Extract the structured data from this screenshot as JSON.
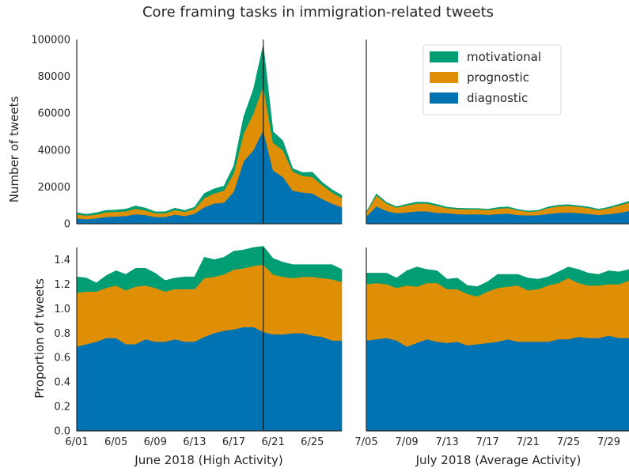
{
  "chart_data": {
    "type": "area",
    "stacked": true,
    "title": "Core framing tasks in immigration-related tweets",
    "colors": {
      "diagnostic": "#0173b2",
      "prognostic": "#de8f05",
      "motivational": "#029e73"
    },
    "legend": {
      "placement": "top-right",
      "entries": [
        "motivational",
        "prognostic",
        "diagnostic"
      ]
    },
    "panels": {
      "june_top": {
        "xlabel": "",
        "ylabel": "Number of tweets",
        "ylim": [
          0,
          100000
        ],
        "yticks": [
          "0",
          "20000",
          "40000",
          "60000",
          "80000",
          "100000"
        ],
        "x": [
          "6/01",
          "6/02",
          "6/03",
          "6/04",
          "6/05",
          "6/06",
          "6/07",
          "6/08",
          "6/09",
          "6/10",
          "6/11",
          "6/12",
          "6/13",
          "6/14",
          "6/15",
          "6/16",
          "6/17",
          "6/18",
          "6/19",
          "6/20",
          "6/21",
          "6/22",
          "6/23",
          "6/24",
          "6/25",
          "6/26",
          "6/27",
          "6/28"
        ],
        "vline": "6/20",
        "series": [
          {
            "name": "diagnostic",
            "values": [
              3000,
              2500,
              3000,
              3800,
              4000,
              4300,
              5200,
              4800,
              3700,
              3700,
              5000,
              4200,
              5500,
              9000,
              11000,
              11500,
              17500,
              34000,
              40000,
              51000,
              29000,
              25500,
              18000,
              17000,
              16500,
              13500,
              11000,
              9000
            ]
          },
          {
            "name": "prognostic",
            "values": [
              2000,
              2000,
              2000,
              2500,
              2500,
              2500,
              3000,
              2500,
              2000,
              2000,
              2500,
              2300,
              2500,
              5000,
              5500,
              6500,
              10000,
              15000,
              20000,
              24000,
              15000,
              14500,
              10500,
              9000,
              9000,
              7500,
              6000,
              5000
            ]
          },
          {
            "name": "motivational",
            "values": [
              1000,
              700,
              1000,
              1000,
              1000,
              1200,
              1500,
              1200,
              800,
              800,
              1000,
              800,
              1000,
              2500,
              2500,
              2500,
              4000,
              9000,
              13000,
              22000,
              6000,
              5000,
              1500,
              1800,
              2500,
              1500,
              1500,
              1500
            ]
          }
        ]
      },
      "july_top": {
        "xlabel": "",
        "ylabel": "",
        "ylim": [
          0,
          100000
        ],
        "x": [
          "7/05",
          "7/06",
          "7/07",
          "7/08",
          "7/09",
          "7/10",
          "7/11",
          "7/12",
          "7/13",
          "7/14",
          "7/15",
          "7/16",
          "7/17",
          "7/18",
          "7/19",
          "7/20",
          "7/21",
          "7/22",
          "7/23",
          "7/24",
          "7/25",
          "7/26",
          "7/27",
          "7/28",
          "7/29",
          "7/30",
          "7/31"
        ],
        "series": [
          {
            "name": "diagnostic",
            "values": [
              4000,
              9500,
              7000,
              5800,
              6200,
              6800,
              6800,
              6000,
              5800,
              5300,
              5100,
              5200,
              4900,
              5300,
              5600,
              4800,
              4600,
              4700,
              5400,
              6000,
              6200,
              5800,
              5400,
              4800,
              5300,
              5900,
              7000
            ]
          },
          {
            "name": "prognostic",
            "values": [
              2000,
              6000,
              4000,
              3000,
              3800,
              4200,
              4200,
              3800,
              2700,
              2700,
              2700,
              2700,
              2600,
              2900,
              3000,
              2600,
              1900,
              2200,
              3200,
              3500,
              3600,
              3500,
              3200,
              2700,
              3200,
              4100,
              4500
            ]
          },
          {
            "name": "motivational",
            "values": [
              300,
              700,
              600,
              500,
              600,
              800,
              700,
              700,
              500,
              500,
              500,
              400,
              400,
              600,
              600,
              400,
              400,
              400,
              500,
              600,
              600,
              500,
              500,
              400,
              500,
              600,
              700
            ]
          }
        ]
      },
      "june_bottom": {
        "xlabel": "June 2018 (High Activity)",
        "ylabel": "Proportion of tweets",
        "ylim": [
          0,
          1.5
        ],
        "yticks": [
          "0.0",
          "0.2",
          "0.4",
          "0.6",
          "0.8",
          "1.0",
          "1.2",
          "1.4"
        ],
        "xticks": [
          "6/01",
          "6/05",
          "6/09",
          "6/13",
          "6/17",
          "6/21",
          "6/25"
        ],
        "x": [
          "6/01",
          "6/02",
          "6/03",
          "6/04",
          "6/05",
          "6/06",
          "6/07",
          "6/08",
          "6/09",
          "6/10",
          "6/11",
          "6/12",
          "6/13",
          "6/14",
          "6/15",
          "6/16",
          "6/17",
          "6/18",
          "6/19",
          "6/20",
          "6/21",
          "6/22",
          "6/23",
          "6/24",
          "6/25",
          "6/26",
          "6/27",
          "6/28"
        ],
        "vline": "6/20",
        "series": [
          {
            "name": "diagnostic",
            "values": [
              0.69,
              0.71,
              0.73,
              0.76,
              0.76,
              0.71,
              0.71,
              0.75,
              0.73,
              0.73,
              0.75,
              0.73,
              0.73,
              0.77,
              0.8,
              0.82,
              0.83,
              0.85,
              0.85,
              0.81,
              0.79,
              0.79,
              0.8,
              0.8,
              0.78,
              0.77,
              0.74,
              0.74
            ]
          },
          {
            "name": "prognostic",
            "values": [
              0.44,
              0.43,
              0.41,
              0.41,
              0.43,
              0.44,
              0.47,
              0.44,
              0.44,
              0.41,
              0.41,
              0.43,
              0.43,
              0.48,
              0.46,
              0.46,
              0.49,
              0.48,
              0.5,
              0.55,
              0.49,
              0.47,
              0.45,
              0.46,
              0.48,
              0.48,
              0.5,
              0.48
            ]
          },
          {
            "name": "motivational",
            "values": [
              0.13,
              0.11,
              0.07,
              0.1,
              0.12,
              0.13,
              0.15,
              0.14,
              0.12,
              0.09,
              0.09,
              0.1,
              0.1,
              0.17,
              0.14,
              0.14,
              0.15,
              0.15,
              0.15,
              0.15,
              0.13,
              0.12,
              0.11,
              0.1,
              0.1,
              0.11,
              0.12,
              0.1
            ]
          }
        ]
      },
      "july_bottom": {
        "xlabel": "July 2018 (Average Activity)",
        "ylabel": "",
        "ylim": [
          0,
          1.5
        ],
        "xticks": [
          "7/05",
          "7/09",
          "7/13",
          "7/17",
          "7/21",
          "7/25",
          "7/29"
        ],
        "x": [
          "7/05",
          "7/06",
          "7/07",
          "7/08",
          "7/09",
          "7/10",
          "7/11",
          "7/12",
          "7/13",
          "7/14",
          "7/15",
          "7/16",
          "7/17",
          "7/18",
          "7/19",
          "7/20",
          "7/21",
          "7/22",
          "7/23",
          "7/24",
          "7/25",
          "7/26",
          "7/27",
          "7/28",
          "7/29",
          "7/30",
          "7/31"
        ],
        "series": [
          {
            "name": "diagnostic",
            "values": [
              0.74,
              0.75,
              0.76,
              0.74,
              0.69,
              0.72,
              0.75,
              0.73,
              0.72,
              0.73,
              0.7,
              0.71,
              0.72,
              0.73,
              0.75,
              0.73,
              0.73,
              0.73,
              0.73,
              0.75,
              0.75,
              0.77,
              0.76,
              0.76,
              0.78,
              0.76,
              0.76
            ]
          },
          {
            "name": "prognostic",
            "values": [
              0.46,
              0.46,
              0.44,
              0.43,
              0.5,
              0.46,
              0.46,
              0.48,
              0.44,
              0.43,
              0.42,
              0.39,
              0.42,
              0.44,
              0.43,
              0.46,
              0.42,
              0.43,
              0.46,
              0.46,
              0.5,
              0.44,
              0.43,
              0.43,
              0.42,
              0.44,
              0.47
            ]
          },
          {
            "name": "motivational",
            "values": [
              0.09,
              0.08,
              0.09,
              0.08,
              0.12,
              0.16,
              0.11,
              0.1,
              0.08,
              0.09,
              0.07,
              0.08,
              0.08,
              0.11,
              0.1,
              0.09,
              0.1,
              0.08,
              0.07,
              0.09,
              0.09,
              0.11,
              0.1,
              0.09,
              0.11,
              0.1,
              0.09
            ]
          }
        ]
      }
    }
  }
}
